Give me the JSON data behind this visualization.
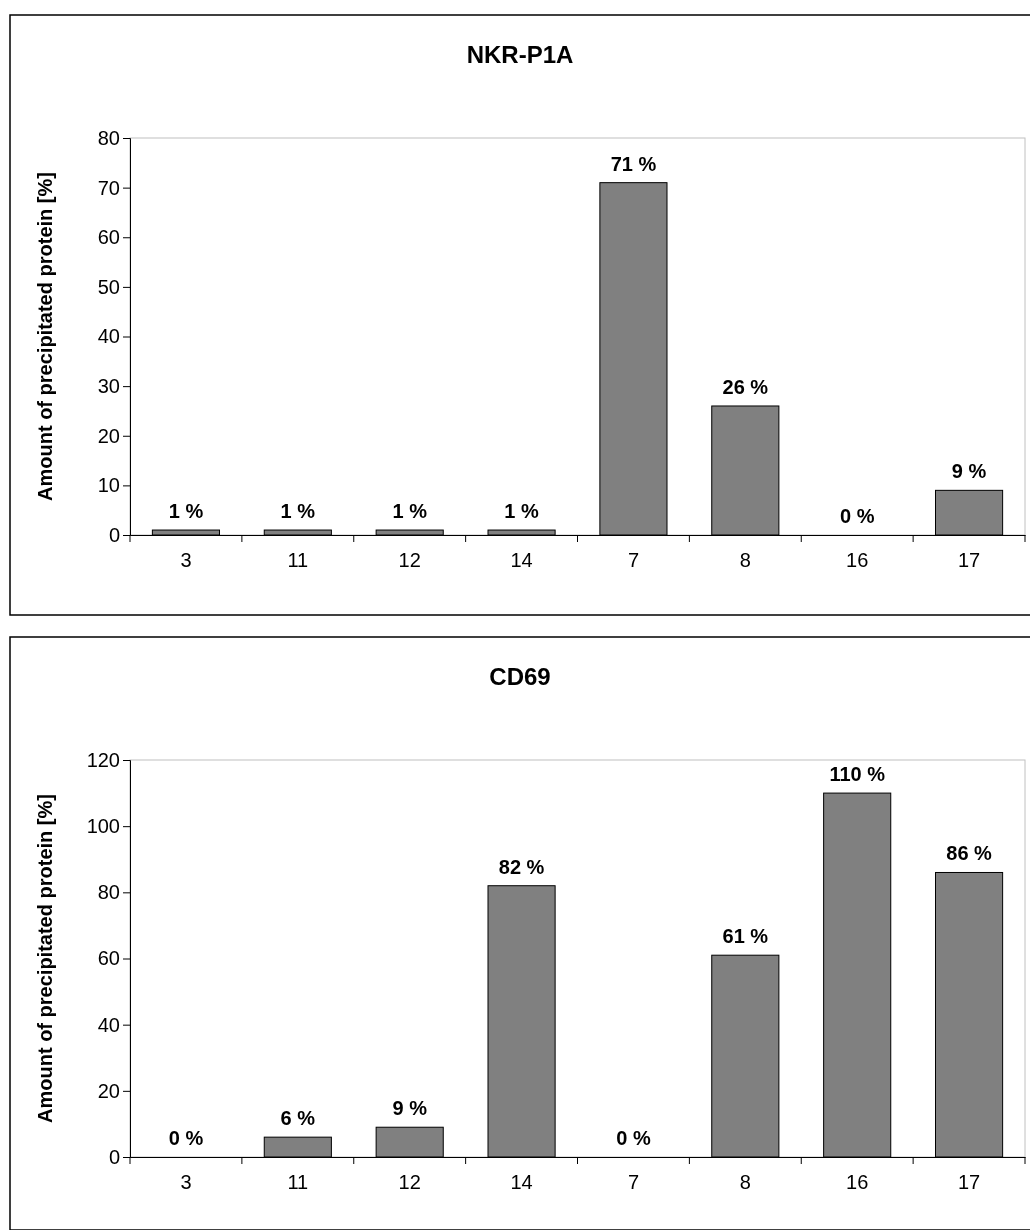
{
  "chart_data": [
    {
      "type": "bar",
      "title": "NKR-P1A",
      "ylabel": "Amount of precipitated protein [%]",
      "categories": [
        "3",
        "11",
        "12",
        "14",
        "7",
        "8",
        "16",
        "17"
      ],
      "values": [
        1,
        1,
        1,
        1,
        71,
        26,
        0,
        9
      ],
      "value_labels": [
        "1 %",
        "1 %",
        "1 %",
        "1 %",
        "71 %",
        "26 %",
        "0 %",
        "9 %"
      ],
      "color": "#808080",
      "ylim": [
        0,
        80
      ],
      "yticks": [
        0,
        10,
        20,
        30,
        40,
        50,
        60,
        70,
        80
      ],
      "grid": false
    },
    {
      "type": "bar",
      "title": "CD69",
      "ylabel": "Amount of precipitated protein [%]",
      "categories": [
        "3",
        "11",
        "12",
        "14",
        "7",
        "8",
        "16",
        "17"
      ],
      "values": [
        0,
        6,
        9,
        82,
        0,
        61,
        110,
        86
      ],
      "value_labels": [
        "0 %",
        "6 %",
        "9 %",
        "82 %",
        "0 %",
        "61 %",
        "110 %",
        "86 %"
      ],
      "color": "#808080",
      "ylim": [
        0,
        120
      ],
      "yticks": [
        0,
        20,
        40,
        60,
        80,
        100,
        120
      ],
      "grid": false
    }
  ]
}
